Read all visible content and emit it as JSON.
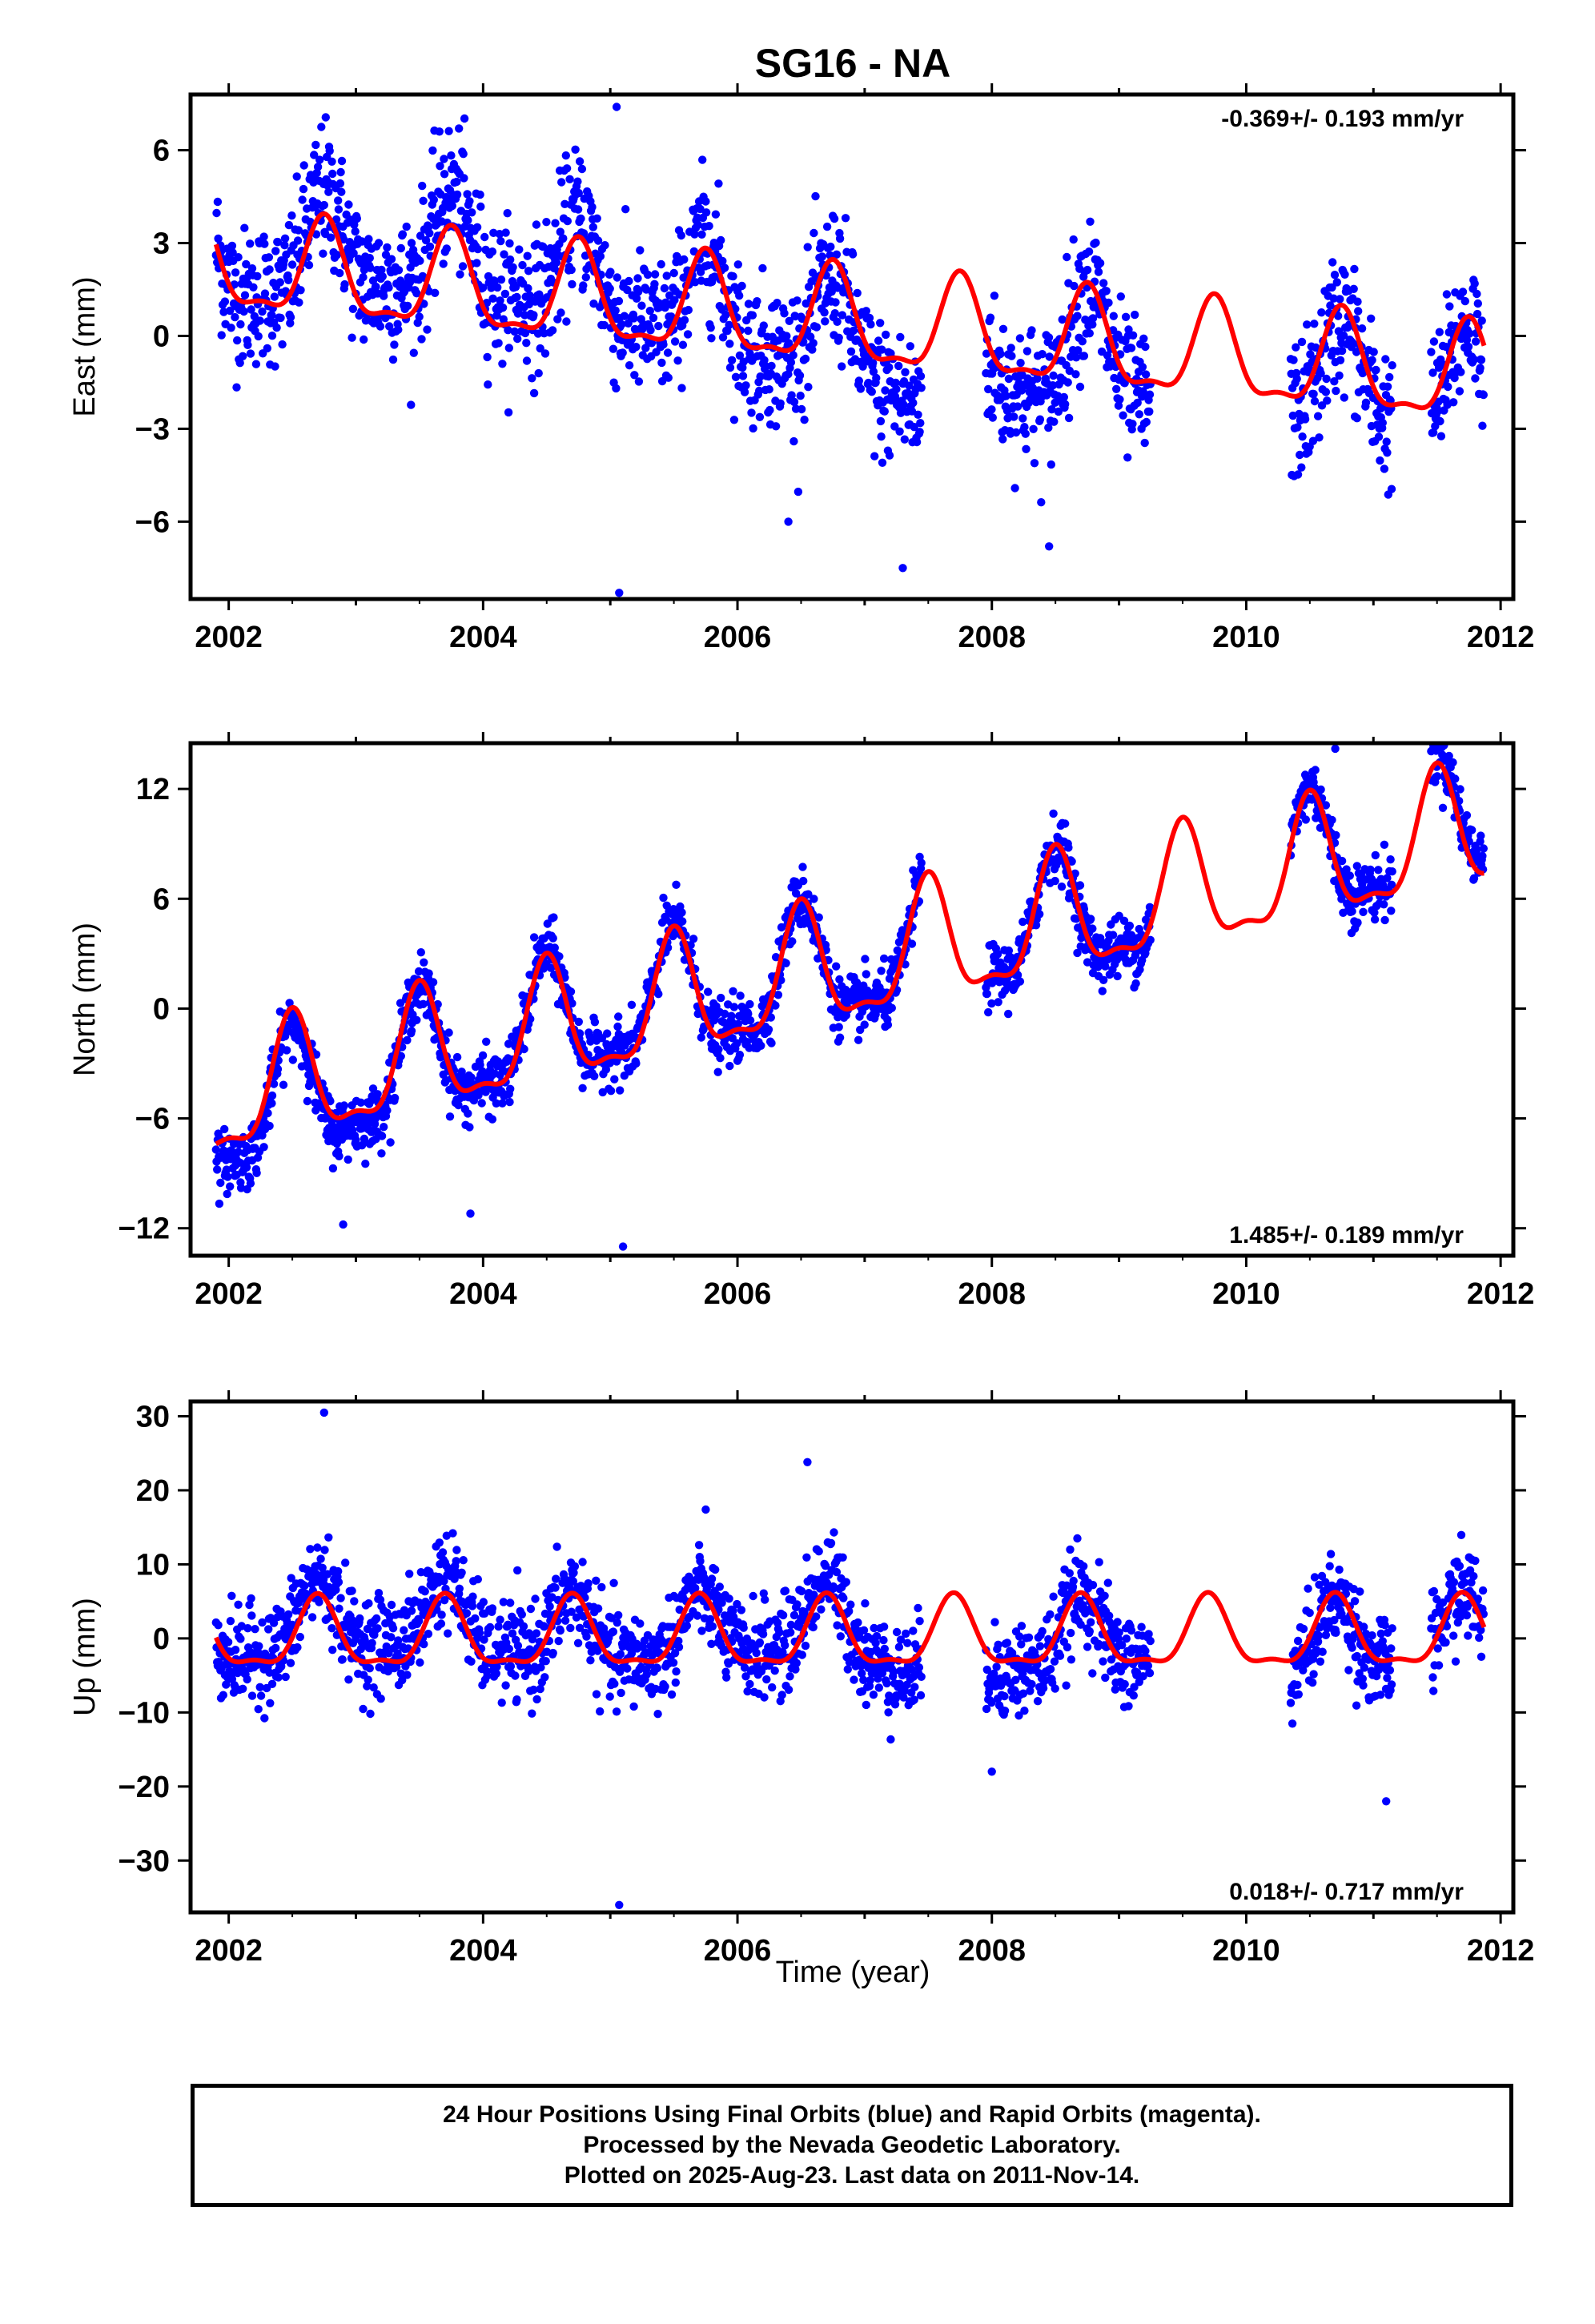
{
  "chart_data": {
    "type": "scatter",
    "title": "SG16 - NA",
    "xlabel": "Time (year)",
    "xlim": [
      2001.7,
      2012.1
    ],
    "xticks": [
      2002,
      2004,
      2006,
      2008,
      2010,
      2012
    ],
    "data_start": 2001.9,
    "data_end": 2011.87,
    "data_gaps": [
      [
        2007.45,
        2007.95
      ],
      [
        2009.25,
        2010.35
      ],
      [
        2011.15,
        2011.45
      ]
    ],
    "colors": {
      "points": "#0000ff",
      "model": "#ff0000",
      "axes": "#000000"
    },
    "panels": [
      {
        "name": "east",
        "ylabel": "East (mm)",
        "ylim": [
          -8.5,
          7.8
        ],
        "yticks": [
          6,
          3,
          0,
          -3,
          -6
        ],
        "ytick_labels": [
          "6",
          "3",
          "0",
          "−3",
          "−6"
        ],
        "rate_label": "-0.369+/- 0.193 mm/yr",
        "rate_position": "top-right",
        "trend_start": 2.2,
        "trend_rate": -0.369,
        "annual_amp": 1.5,
        "annual_peak": 2001.75,
        "scatter_sd": 1.5,
        "offsets": [
          [
            2002.0,
            0.0
          ],
          [
            2003.0,
            1.5
          ],
          [
            2004.0,
            1.8
          ],
          [
            2005.0,
            0.8
          ],
          [
            2006.0,
            0.0
          ],
          [
            2007.0,
            -1.2
          ],
          [
            2007.4,
            -2.5
          ],
          [
            2008.0,
            -0.6
          ],
          [
            2008.4,
            -1.5
          ],
          [
            2008.8,
            0.0
          ],
          [
            2009.2,
            -1.0
          ],
          [
            2010.6,
            -0.8
          ],
          [
            2011.8,
            -0.4
          ]
        ],
        "outliers": [
          [
            2005.05,
            7.4
          ],
          [
            2005.07,
            -8.3
          ],
          [
            2007.3,
            -7.5
          ],
          [
            2006.4,
            -6.0
          ],
          [
            2008.45,
            -6.8
          ]
        ]
      },
      {
        "name": "north",
        "ylabel": "North (mm)",
        "ylim": [
          -13.5,
          14.5
        ],
        "yticks": [
          12,
          6,
          0,
          -6,
          -12
        ],
        "ytick_labels": [
          "12",
          "6",
          "0",
          "−6",
          "−12"
        ],
        "rate_label": "1.485+/- 0.189 mm/yr",
        "rate_position": "bottom-right",
        "trend_start": -5.0,
        "trend_rate": 1.485,
        "annual_amp": 3.2,
        "annual_peak": 2001.5,
        "scatter_sd": 1.1,
        "offsets": [
          [
            2002.0,
            -2.0
          ],
          [
            2003.0,
            -1.0
          ],
          [
            2004.0,
            0.0
          ],
          [
            2005.0,
            0.5
          ],
          [
            2006.0,
            0.0
          ],
          [
            2007.0,
            0.0
          ],
          [
            2008.0,
            0.0
          ],
          [
            2009.0,
            0.0
          ],
          [
            2010.0,
            0.0
          ],
          [
            2011.0,
            0.5
          ],
          [
            2011.6,
            1.0
          ]
        ],
        "outliers": [
          [
            2005.1,
            -13.0
          ],
          [
            2010.7,
            14.2
          ],
          [
            2002.9,
            -11.8
          ],
          [
            2003.9,
            -11.2
          ]
        ]
      },
      {
        "name": "up",
        "ylabel": "Up (mm)",
        "ylim": [
          -37,
          32
        ],
        "yticks": [
          30,
          20,
          10,
          0,
          -10,
          -20,
          -30
        ],
        "ytick_labels": [
          "30",
          "20",
          "10",
          "0",
          "−10",
          "−20",
          "−30"
        ],
        "rate_label": "0.018+/- 0.717 mm/yr",
        "rate_position": "bottom-right",
        "trend_start": 0.0,
        "trend_rate": 0.018,
        "annual_amp": 4.5,
        "annual_peak": 2001.7,
        "scatter_sd": 4.2,
        "offsets": [
          [
            2002.0,
            0.0
          ],
          [
            2002.8,
            4.0
          ],
          [
            2003.8,
            4.0
          ],
          [
            2004.6,
            0.0
          ],
          [
            2005.5,
            0.0
          ],
          [
            2006.7,
            4.0
          ],
          [
            2007.3,
            -3.0
          ],
          [
            2008.0,
            -3.0
          ],
          [
            2008.8,
            0.0
          ],
          [
            2010.6,
            -2.0
          ],
          [
            2011.7,
            0.5
          ]
        ],
        "outliers": [
          [
            2005.07,
            -36.0
          ],
          [
            2002.75,
            30.5
          ],
          [
            2006.55,
            23.8
          ],
          [
            2011.1,
            -22.0
          ],
          [
            2008.0,
            -18.0
          ]
        ]
      }
    ]
  },
  "footer": {
    "line1": "24 Hour Positions Using Final Orbits (blue) and Rapid Orbits (magenta).",
    "line2": "Processed by the Nevada Geodetic Laboratory.",
    "line3": "Plotted on 2025-Aug-23. Last data on 2011-Nov-14."
  }
}
